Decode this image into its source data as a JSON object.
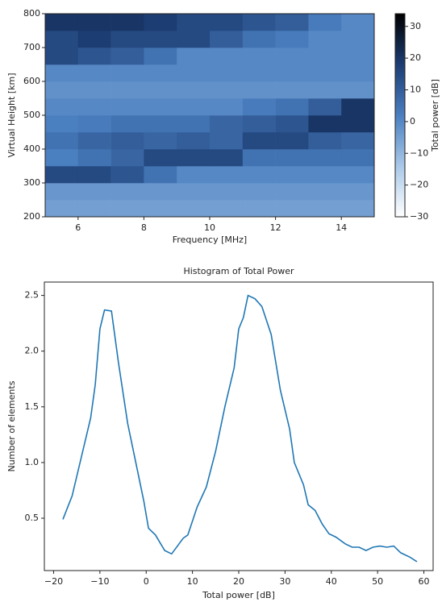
{
  "chart_data": [
    {
      "type": "heatmap",
      "xlabel": "Frequency [MHz]",
      "ylabel": "Virtual Height [km]",
      "colorbar_label": "Total power [dB]",
      "xbins": [
        5,
        6,
        7,
        8,
        9,
        10,
        11,
        12,
        13,
        14,
        15
      ],
      "ybins": [
        200,
        250,
        300,
        350,
        400,
        450,
        500,
        550,
        600,
        650,
        700,
        750,
        800
      ],
      "z": [
        [
          -5,
          -5,
          -5,
          -5,
          -5,
          -5,
          -5,
          -5,
          -5,
          -5
        ],
        [
          -3,
          -3,
          -3,
          -3,
          -3,
          -3,
          -3,
          -3,
          -3,
          -3
        ],
        [
          15,
          15,
          12,
          5,
          0,
          0,
          0,
          0,
          0,
          0
        ],
        [
          2,
          5,
          8,
          15,
          15,
          15,
          5,
          5,
          5,
          5
        ],
        [
          5,
          8,
          10,
          8,
          10,
          8,
          15,
          15,
          10,
          8
        ],
        [
          2,
          3,
          5,
          5,
          5,
          8,
          10,
          12,
          20,
          20
        ],
        [
          0,
          0,
          0,
          0,
          0,
          0,
          3,
          5,
          10,
          20
        ],
        [
          -2,
          -2,
          -2,
          -2,
          -2,
          -2,
          -2,
          -2,
          -2,
          -2
        ],
        [
          0,
          0,
          0,
          0,
          0,
          0,
          0,
          0,
          0,
          0
        ],
        [
          15,
          12,
          10,
          5,
          0,
          0,
          0,
          0,
          0,
          0
        ],
        [
          15,
          18,
          15,
          15,
          15,
          10,
          5,
          3,
          0,
          0
        ],
        [
          20,
          20,
          20,
          18,
          15,
          15,
          12,
          10,
          3,
          0
        ]
      ],
      "xlim": [
        5,
        15
      ],
      "xticks": [
        6,
        8,
        10,
        12,
        14
      ],
      "ylim": [
        200,
        800
      ],
      "yticks": [
        200,
        300,
        400,
        500,
        600,
        700,
        800
      ],
      "zlim": [
        -30,
        34
      ],
      "zticks": [
        {
          "value": -30,
          "label": "−30"
        },
        {
          "value": -20,
          "label": "−20"
        },
        {
          "value": -10,
          "label": "−10"
        },
        0,
        10,
        20,
        30
      ],
      "colormap": [
        "#ffffff",
        "#a9c8e8",
        "#4a7fc0",
        "#1c3d73",
        "#000000"
      ]
    },
    {
      "type": "line",
      "title": "Histogram of Total Power",
      "xlabel": "Total power [dB]",
      "ylabel": "Number of elements",
      "color": "#1f77b4",
      "x": [
        -18,
        -16,
        -14,
        -12,
        -11,
        -10,
        -9,
        -7.5,
        -6,
        -4,
        -2,
        -0.5,
        0.5,
        2,
        4,
        5.5,
        8,
        9,
        11,
        13,
        15,
        17,
        19,
        20,
        21,
        22,
        23.5,
        25,
        27,
        28,
        29,
        31,
        32,
        34,
        35,
        36.5,
        38,
        39.5,
        41,
        43,
        44.5,
        46,
        47.5,
        49,
        50.5,
        52,
        53.5,
        55,
        57,
        58.5
      ],
      "values": [
        0.49,
        0.7,
        1.05,
        1.4,
        1.7,
        2.2,
        2.37,
        2.36,
        1.9,
        1.35,
        0.95,
        0.65,
        0.41,
        0.35,
        0.21,
        0.18,
        0.32,
        0.35,
        0.6,
        0.78,
        1.1,
        1.5,
        1.85,
        2.2,
        2.3,
        2.5,
        2.47,
        2.4,
        2.15,
        1.9,
        1.65,
        1.3,
        1.0,
        0.8,
        0.62,
        0.57,
        0.45,
        0.36,
        0.33,
        0.27,
        0.24,
        0.24,
        0.21,
        0.24,
        0.25,
        0.24,
        0.25,
        0.19,
        0.15,
        0.11
      ],
      "xlim": [
        -22,
        62
      ],
      "xticks": [
        {
          "value": -20,
          "label": "−20"
        },
        {
          "value": -10,
          "label": "−10"
        },
        0,
        10,
        20,
        30,
        40,
        50,
        60
      ],
      "ylim": [
        0.03,
        2.62
      ],
      "yticks": [
        {
          "value": 0.5,
          "label": "0.5"
        },
        {
          "value": 1.0,
          "label": "1.0"
        },
        {
          "value": 1.5,
          "label": "1.5"
        },
        {
          "value": 2.0,
          "label": "2.0"
        },
        {
          "value": 2.5,
          "label": "2.5"
        }
      ]
    }
  ]
}
